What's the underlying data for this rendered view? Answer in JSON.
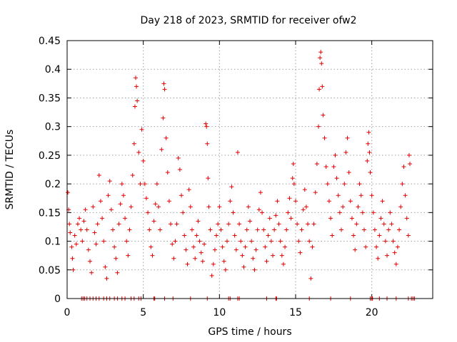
{
  "chart_data": {
    "type": "scatter",
    "title": "Day 218 of 2023, SRMTID for receiver ofw2",
    "xlabel": "GPS time / hours",
    "ylabel": "SRMTID / TECUs",
    "xlim": [
      0,
      24
    ],
    "ylim": [
      0,
      0.45
    ],
    "xticks": [
      0,
      5,
      10,
      15,
      20
    ],
    "yticks": [
      0,
      0.05,
      0.1,
      0.15,
      0.2,
      0.25,
      0.3,
      0.35,
      0.4,
      0.45
    ],
    "grid": true,
    "marker": "+",
    "color": "#e00000",
    "series": [
      {
        "name": "SRMTID",
        "points": [
          [
            0.05,
            0.185
          ],
          [
            0.1,
            0.155
          ],
          [
            0.15,
            0.13
          ],
          [
            0.2,
            0.115
          ],
          [
            0.3,
            0.09
          ],
          [
            0.35,
            0.07
          ],
          [
            0.4,
            0.05
          ],
          [
            0.5,
            0.11
          ],
          [
            0.6,
            0.095
          ],
          [
            0.7,
            0.13
          ],
          [
            0.8,
            0.14
          ],
          [
            0.9,
            0.12
          ],
          [
            1.0,
            0.1
          ],
          [
            1.1,
            0.135
          ],
          [
            1.2,
            0.155
          ],
          [
            1.3,
            0.12
          ],
          [
            1.4,
            0.085
          ],
          [
            1.5,
            0.065
          ],
          [
            1.6,
            0.045
          ],
          [
            1.7,
            0.16
          ],
          [
            1.8,
            0.115
          ],
          [
            1.9,
            0.095
          ],
          [
            2.0,
            0.13
          ],
          [
            2.1,
            0.215
          ],
          [
            2.2,
            0.17
          ],
          [
            2.3,
            0.14
          ],
          [
            2.4,
            0.1
          ],
          [
            2.5,
            0.055
          ],
          [
            2.6,
            0.035
          ],
          [
            2.7,
            0.18
          ],
          [
            2.8,
            0.205
          ],
          [
            2.9,
            0.155
          ],
          [
            3.0,
            0.12
          ],
          [
            3.1,
            0.09
          ],
          [
            3.2,
            0.07
          ],
          [
            3.3,
            0.045
          ],
          [
            3.4,
            0.13
          ],
          [
            3.5,
            0.165
          ],
          [
            3.6,
            0.2
          ],
          [
            3.7,
            0.18
          ],
          [
            3.8,
            0.14
          ],
          [
            3.9,
            0.1
          ],
          [
            4.0,
            0.075
          ],
          [
            4.1,
            0.12
          ],
          [
            4.2,
            0.16
          ],
          [
            4.3,
            0.215
          ],
          [
            4.4,
            0.27
          ],
          [
            4.45,
            0.335
          ],
          [
            4.5,
            0.385
          ],
          [
            4.55,
            0.37
          ],
          [
            4.6,
            0.345
          ],
          [
            4.7,
            0.255
          ],
          [
            4.8,
            0.2
          ],
          [
            4.9,
            0.295
          ],
          [
            5.0,
            0.24
          ],
          [
            5.1,
            0.2
          ],
          [
            5.2,
            0.175
          ],
          [
            5.3,
            0.15
          ],
          [
            5.4,
            0.12
          ],
          [
            5.5,
            0.09
          ],
          [
            5.6,
            0.075
          ],
          [
            5.7,
            0.135
          ],
          [
            5.8,
            0.165
          ],
          [
            5.9,
            0.2
          ],
          [
            6.0,
            0.16
          ],
          [
            6.1,
            0.12
          ],
          [
            6.2,
            0.26
          ],
          [
            6.3,
            0.315
          ],
          [
            6.35,
            0.375
          ],
          [
            6.4,
            0.365
          ],
          [
            6.5,
            0.28
          ],
          [
            6.6,
            0.22
          ],
          [
            6.7,
            0.17
          ],
          [
            6.8,
            0.13
          ],
          [
            6.9,
            0.095
          ],
          [
            7.0,
            0.07
          ],
          [
            7.1,
            0.1
          ],
          [
            7.2,
            0.13
          ],
          [
            7.3,
            0.245
          ],
          [
            7.4,
            0.225
          ],
          [
            7.5,
            0.18
          ],
          [
            7.6,
            0.15
          ],
          [
            7.7,
            0.11
          ],
          [
            7.8,
            0.085
          ],
          [
            7.9,
            0.06
          ],
          [
            8.0,
            0.19
          ],
          [
            8.1,
            0.16
          ],
          [
            8.2,
            0.12
          ],
          [
            8.3,
            0.09
          ],
          [
            8.4,
            0.07
          ],
          [
            8.5,
            0.11
          ],
          [
            8.6,
            0.135
          ],
          [
            8.7,
            0.1
          ],
          [
            8.8,
            0.08
          ],
          [
            8.9,
            0.065
          ],
          [
            9.0,
            0.095
          ],
          [
            9.1,
            0.305
          ],
          [
            9.15,
            0.3
          ],
          [
            9.2,
            0.27
          ],
          [
            9.25,
            0.21
          ],
          [
            9.3,
            0.16
          ],
          [
            9.4,
            0.12
          ],
          [
            9.5,
            0.04
          ],
          [
            9.6,
            0.06
          ],
          [
            9.7,
            0.085
          ],
          [
            9.8,
            0.11
          ],
          [
            9.9,
            0.13
          ],
          [
            10.0,
            0.16
          ],
          [
            10.1,
            0.12
          ],
          [
            10.2,
            0.09
          ],
          [
            10.3,
            0.065
          ],
          [
            10.4,
            0.05
          ],
          [
            10.5,
            0.1
          ],
          [
            10.6,
            0.13
          ],
          [
            10.7,
            0.17
          ],
          [
            10.8,
            0.195
          ],
          [
            10.9,
            0.15
          ],
          [
            11.0,
            0.11
          ],
          [
            11.1,
            0.085
          ],
          [
            11.2,
            0.255
          ],
          [
            11.3,
            0.13
          ],
          [
            11.4,
            0.1
          ],
          [
            11.5,
            0.075
          ],
          [
            11.6,
            0.055
          ],
          [
            11.7,
            0.09
          ],
          [
            11.8,
            0.12
          ],
          [
            11.9,
            0.16
          ],
          [
            12.0,
            0.135
          ],
          [
            12.1,
            0.1
          ],
          [
            12.2,
            0.07
          ],
          [
            12.3,
            0.05
          ],
          [
            12.4,
            0.085
          ],
          [
            12.5,
            0.12
          ],
          [
            12.6,
            0.155
          ],
          [
            12.7,
            0.185
          ],
          [
            12.8,
            0.15
          ],
          [
            12.9,
            0.12
          ],
          [
            13.0,
            0.09
          ],
          [
            13.1,
            0.065
          ],
          [
            13.2,
            0.11
          ],
          [
            13.3,
            0.14
          ],
          [
            13.4,
            0.1
          ],
          [
            13.5,
            0.075
          ],
          [
            13.6,
            0.12
          ],
          [
            13.7,
            0.145
          ],
          [
            13.8,
            0.17
          ],
          [
            13.9,
            0.13
          ],
          [
            14.0,
            0.1
          ],
          [
            14.1,
            0.075
          ],
          [
            14.2,
            0.06
          ],
          [
            14.3,
            0.09
          ],
          [
            14.4,
            0.12
          ],
          [
            14.5,
            0.15
          ],
          [
            14.6,
            0.175
          ],
          [
            14.7,
            0.14
          ],
          [
            14.8,
            0.21
          ],
          [
            14.85,
            0.235
          ],
          [
            14.9,
            0.2
          ],
          [
            15.0,
            0.17
          ],
          [
            15.1,
            0.13
          ],
          [
            15.2,
            0.1
          ],
          [
            15.3,
            0.08
          ],
          [
            15.4,
            0.12
          ],
          [
            15.5,
            0.155
          ],
          [
            15.6,
            0.19
          ],
          [
            15.7,
            0.16
          ],
          [
            15.8,
            0.13
          ],
          [
            15.9,
            0.1
          ],
          [
            16.0,
            0.035
          ],
          [
            16.1,
            0.09
          ],
          [
            16.2,
            0.13
          ],
          [
            16.3,
            0.185
          ],
          [
            16.4,
            0.235
          ],
          [
            16.5,
            0.3
          ],
          [
            16.55,
            0.365
          ],
          [
            16.6,
            0.42
          ],
          [
            16.65,
            0.43
          ],
          [
            16.7,
            0.41
          ],
          [
            16.75,
            0.37
          ],
          [
            16.8,
            0.32
          ],
          [
            16.9,
            0.28
          ],
          [
            17.0,
            0.23
          ],
          [
            17.1,
            0.2
          ],
          [
            17.2,
            0.17
          ],
          [
            17.3,
            0.14
          ],
          [
            17.4,
            0.11
          ],
          [
            17.5,
            0.23
          ],
          [
            17.6,
            0.25
          ],
          [
            17.7,
            0.21
          ],
          [
            17.8,
            0.18
          ],
          [
            17.9,
            0.15
          ],
          [
            18.0,
            0.12
          ],
          [
            18.1,
            0.16
          ],
          [
            18.2,
            0.2
          ],
          [
            18.3,
            0.255
          ],
          [
            18.4,
            0.28
          ],
          [
            18.5,
            0.22
          ],
          [
            18.6,
            0.17
          ],
          [
            18.7,
            0.14
          ],
          [
            18.8,
            0.11
          ],
          [
            18.9,
            0.085
          ],
          [
            19.0,
            0.13
          ],
          [
            19.1,
            0.16
          ],
          [
            19.2,
            0.2
          ],
          [
            19.3,
            0.18
          ],
          [
            19.4,
            0.15
          ],
          [
            19.5,
            0.12
          ],
          [
            19.6,
            0.09
          ],
          [
            19.7,
            0.24
          ],
          [
            19.75,
            0.27
          ],
          [
            19.8,
            0.29
          ],
          [
            19.85,
            0.255
          ],
          [
            19.9,
            0.22
          ],
          [
            20.0,
            0.18
          ],
          [
            20.1,
            0.15
          ],
          [
            20.2,
            0.12
          ],
          [
            20.3,
            0.09
          ],
          [
            20.4,
            0.07
          ],
          [
            20.5,
            0.11
          ],
          [
            20.6,
            0.14
          ],
          [
            20.7,
            0.17
          ],
          [
            20.8,
            0.13
          ],
          [
            20.9,
            0.1
          ],
          [
            21.0,
            0.075
          ],
          [
            21.1,
            0.12
          ],
          [
            21.2,
            0.15
          ],
          [
            21.3,
            0.13
          ],
          [
            21.4,
            0.1
          ],
          [
            21.5,
            0.08
          ],
          [
            21.6,
            0.06
          ],
          [
            21.7,
            0.09
          ],
          [
            21.8,
            0.12
          ],
          [
            21.9,
            0.16
          ],
          [
            22.0,
            0.2
          ],
          [
            22.1,
            0.23
          ],
          [
            22.2,
            0.18
          ],
          [
            22.3,
            0.14
          ],
          [
            22.4,
            0.11
          ],
          [
            22.45,
            0.25
          ],
          [
            22.5,
            0.235
          ]
        ]
      }
    ],
    "zero_marks": [
      0.95,
      1.05,
      1.15,
      1.3,
      1.5,
      1.7,
      1.9,
      2.1,
      2.4,
      2.6,
      2.8,
      3.1,
      3.3,
      3.6,
      3.8,
      4.2,
      4.4,
      4.7,
      4.85,
      5.7,
      5.75,
      6.4,
      6.95,
      8.1,
      9.2,
      10.6,
      10.7,
      11.2,
      11.3,
      13.1,
      13.7,
      13.75,
      15.9,
      17.3,
      18.6,
      19.9,
      20.0,
      20.05,
      20.5,
      21.0,
      21.6,
      22.4,
      22.6,
      22.7,
      22.8
    ]
  }
}
